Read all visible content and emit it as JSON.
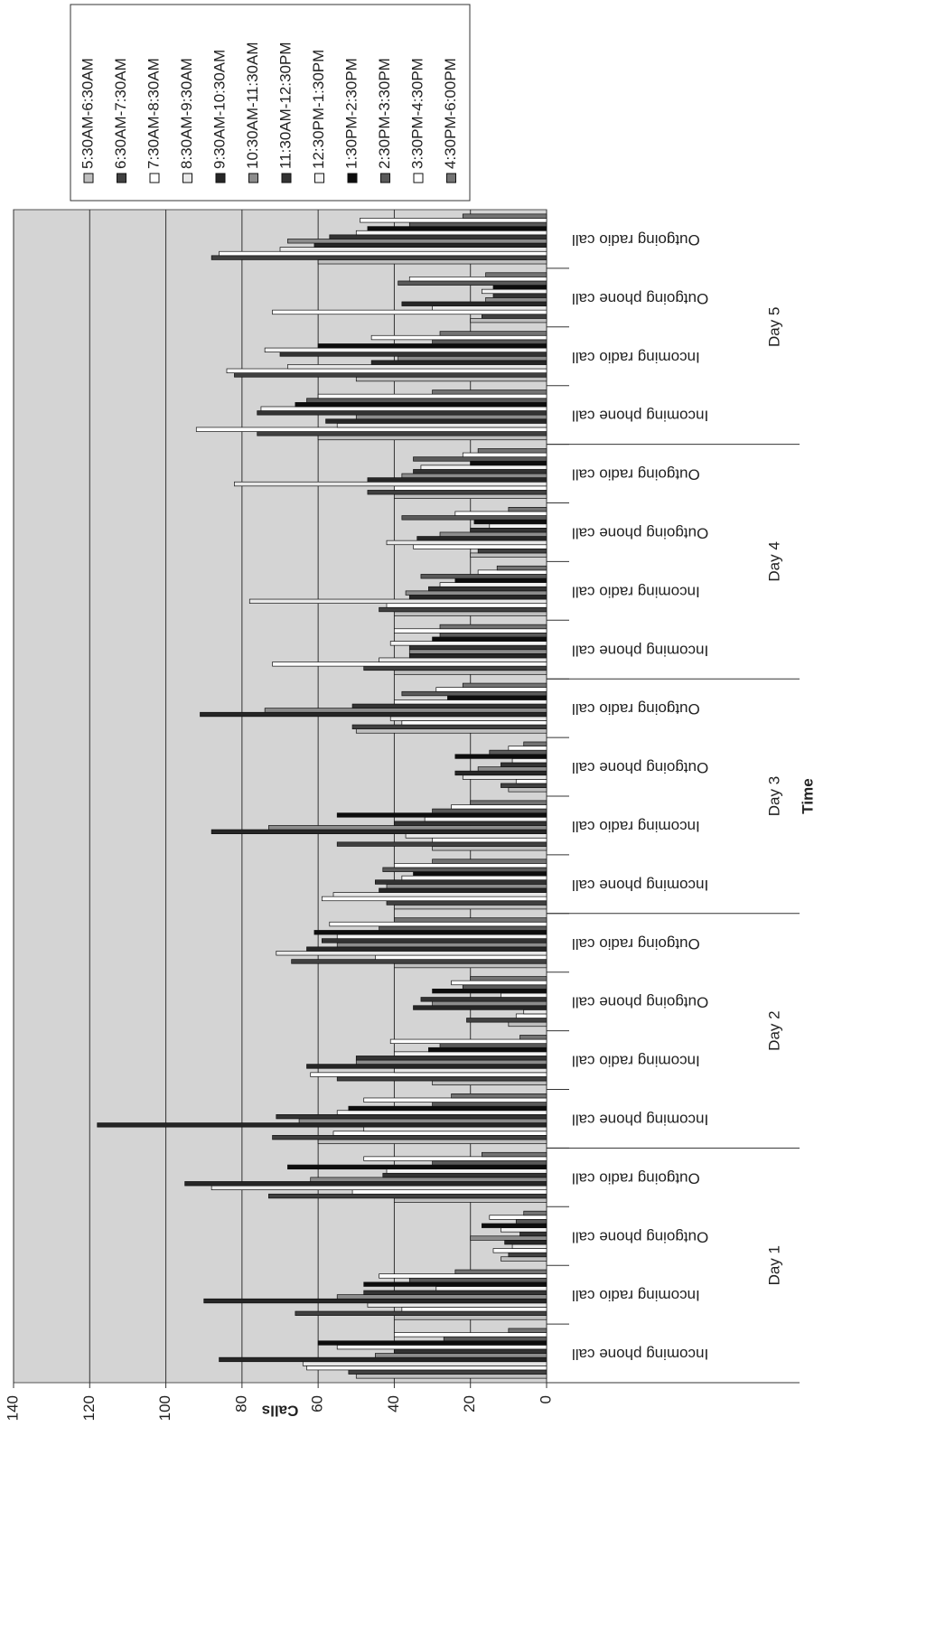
{
  "chart_data": {
    "type": "bar",
    "x_label": "Time",
    "y_label": "Calls",
    "groups": [
      "Day 1",
      "Day 2",
      "Day 3",
      "Day 4",
      "Day 5"
    ],
    "categories": [
      "Incoming phone call",
      "Incoming radio call",
      "Outgoing phone call",
      "Outgoing radio call",
      "Incoming phone call",
      "Incoming radio call",
      "Outgoing phone call",
      "Outgoing radio call",
      "Incoming phone call",
      "Incoming radio call",
      "Outgoing phone call",
      "Outgoing radio call",
      "Incoming phone call",
      "Incoming radio call",
      "Outgoing phone call",
      "Outgoing radio call",
      "Incoming phone call",
      "Incoming radio call",
      "Outgoing phone call",
      "Outgoing radio call"
    ],
    "ylim": [
      0,
      140
    ],
    "yticks": [
      0,
      20,
      40,
      60,
      80,
      100,
      120,
      140
    ],
    "grid": true,
    "series": [
      {
        "name": "5:30AM-6:30AM",
        "color": "#bfbfbf",
        "values": [
          50,
          40,
          12,
          40,
          60,
          30,
          10,
          40,
          40,
          30,
          10,
          50,
          40,
          40,
          20,
          40,
          60,
          50,
          20,
          60
        ]
      },
      {
        "name": "6:30AM-7:30AM",
        "color": "#404040",
        "values": [
          52,
          66,
          10,
          73,
          72,
          55,
          21,
          67,
          42,
          55,
          12,
          51,
          48,
          44,
          18,
          47,
          76,
          82,
          17,
          88
        ]
      },
      {
        "name": "7:30AM-8:30AM",
        "color": "#ffffff",
        "values": [
          63,
          38,
          14,
          51,
          56,
          62,
          8,
          45,
          59,
          30,
          8,
          38,
          72,
          42,
          35,
          40,
          92,
          84,
          72,
          86
        ]
      },
      {
        "name": "8:30AM-9:30AM",
        "color": "#e8e8e8",
        "values": [
          64,
          47,
          9,
          88,
          48,
          40,
          6,
          71,
          56,
          37,
          22,
          41,
          44,
          78,
          42,
          82,
          55,
          68,
          30,
          70
        ]
      },
      {
        "name": "9:30AM-10:30AM",
        "color": "#262626",
        "values": [
          86,
          90,
          11,
          95,
          118,
          63,
          35,
          63,
          44,
          88,
          24,
          91,
          36,
          36,
          34,
          47,
          58,
          46,
          38,
          61
        ]
      },
      {
        "name": "10:30AM-11:30AM",
        "color": "#8c8c8c",
        "values": [
          45,
          55,
          20,
          62,
          65,
          50,
          30,
          55,
          42,
          73,
          18,
          74,
          36,
          37,
          28,
          38,
          50,
          39,
          16,
          68
        ]
      },
      {
        "name": "11:30AM-12:30PM",
        "color": "#333333",
        "values": [
          40,
          48,
          7,
          43,
          71,
          50,
          33,
          59,
          45,
          40,
          12,
          51,
          36,
          31,
          20,
          35,
          76,
          70,
          14,
          57
        ]
      },
      {
        "name": "12:30PM-1:30PM",
        "color": "#f2f2f2",
        "values": [
          55,
          29,
          12,
          42,
          55,
          40,
          12,
          55,
          38,
          32,
          9,
          40,
          41,
          28,
          15,
          33,
          75,
          74,
          17,
          50
        ]
      },
      {
        "name": "1:30PM-2:30PM",
        "color": "#0d0d0d",
        "values": [
          60,
          48,
          17,
          68,
          52,
          31,
          30,
          61,
          35,
          55,
          24,
          26,
          30,
          24,
          19,
          20,
          66,
          60,
          14,
          47
        ]
      },
      {
        "name": "2:30PM-3:30PM",
        "color": "#595959",
        "values": [
          27,
          36,
          8,
          30,
          30,
          28,
          22,
          44,
          43,
          30,
          15,
          38,
          28,
          33,
          38,
          35,
          63,
          30,
          39,
          36
        ]
      },
      {
        "name": "3:30PM-4:30PM",
        "color": "#ffffff",
        "values": [
          40,
          44,
          15,
          48,
          48,
          41,
          25,
          57,
          40,
          25,
          10,
          29,
          40,
          18,
          24,
          22,
          60,
          46,
          36,
          49
        ]
      },
      {
        "name": "4:30PM-6:00PM",
        "color": "#737373",
        "values": [
          10,
          24,
          6,
          17,
          25,
          7,
          20,
          40,
          30,
          20,
          6,
          22,
          28,
          13,
          10,
          18,
          30,
          28,
          16,
          22
        ]
      }
    ]
  }
}
